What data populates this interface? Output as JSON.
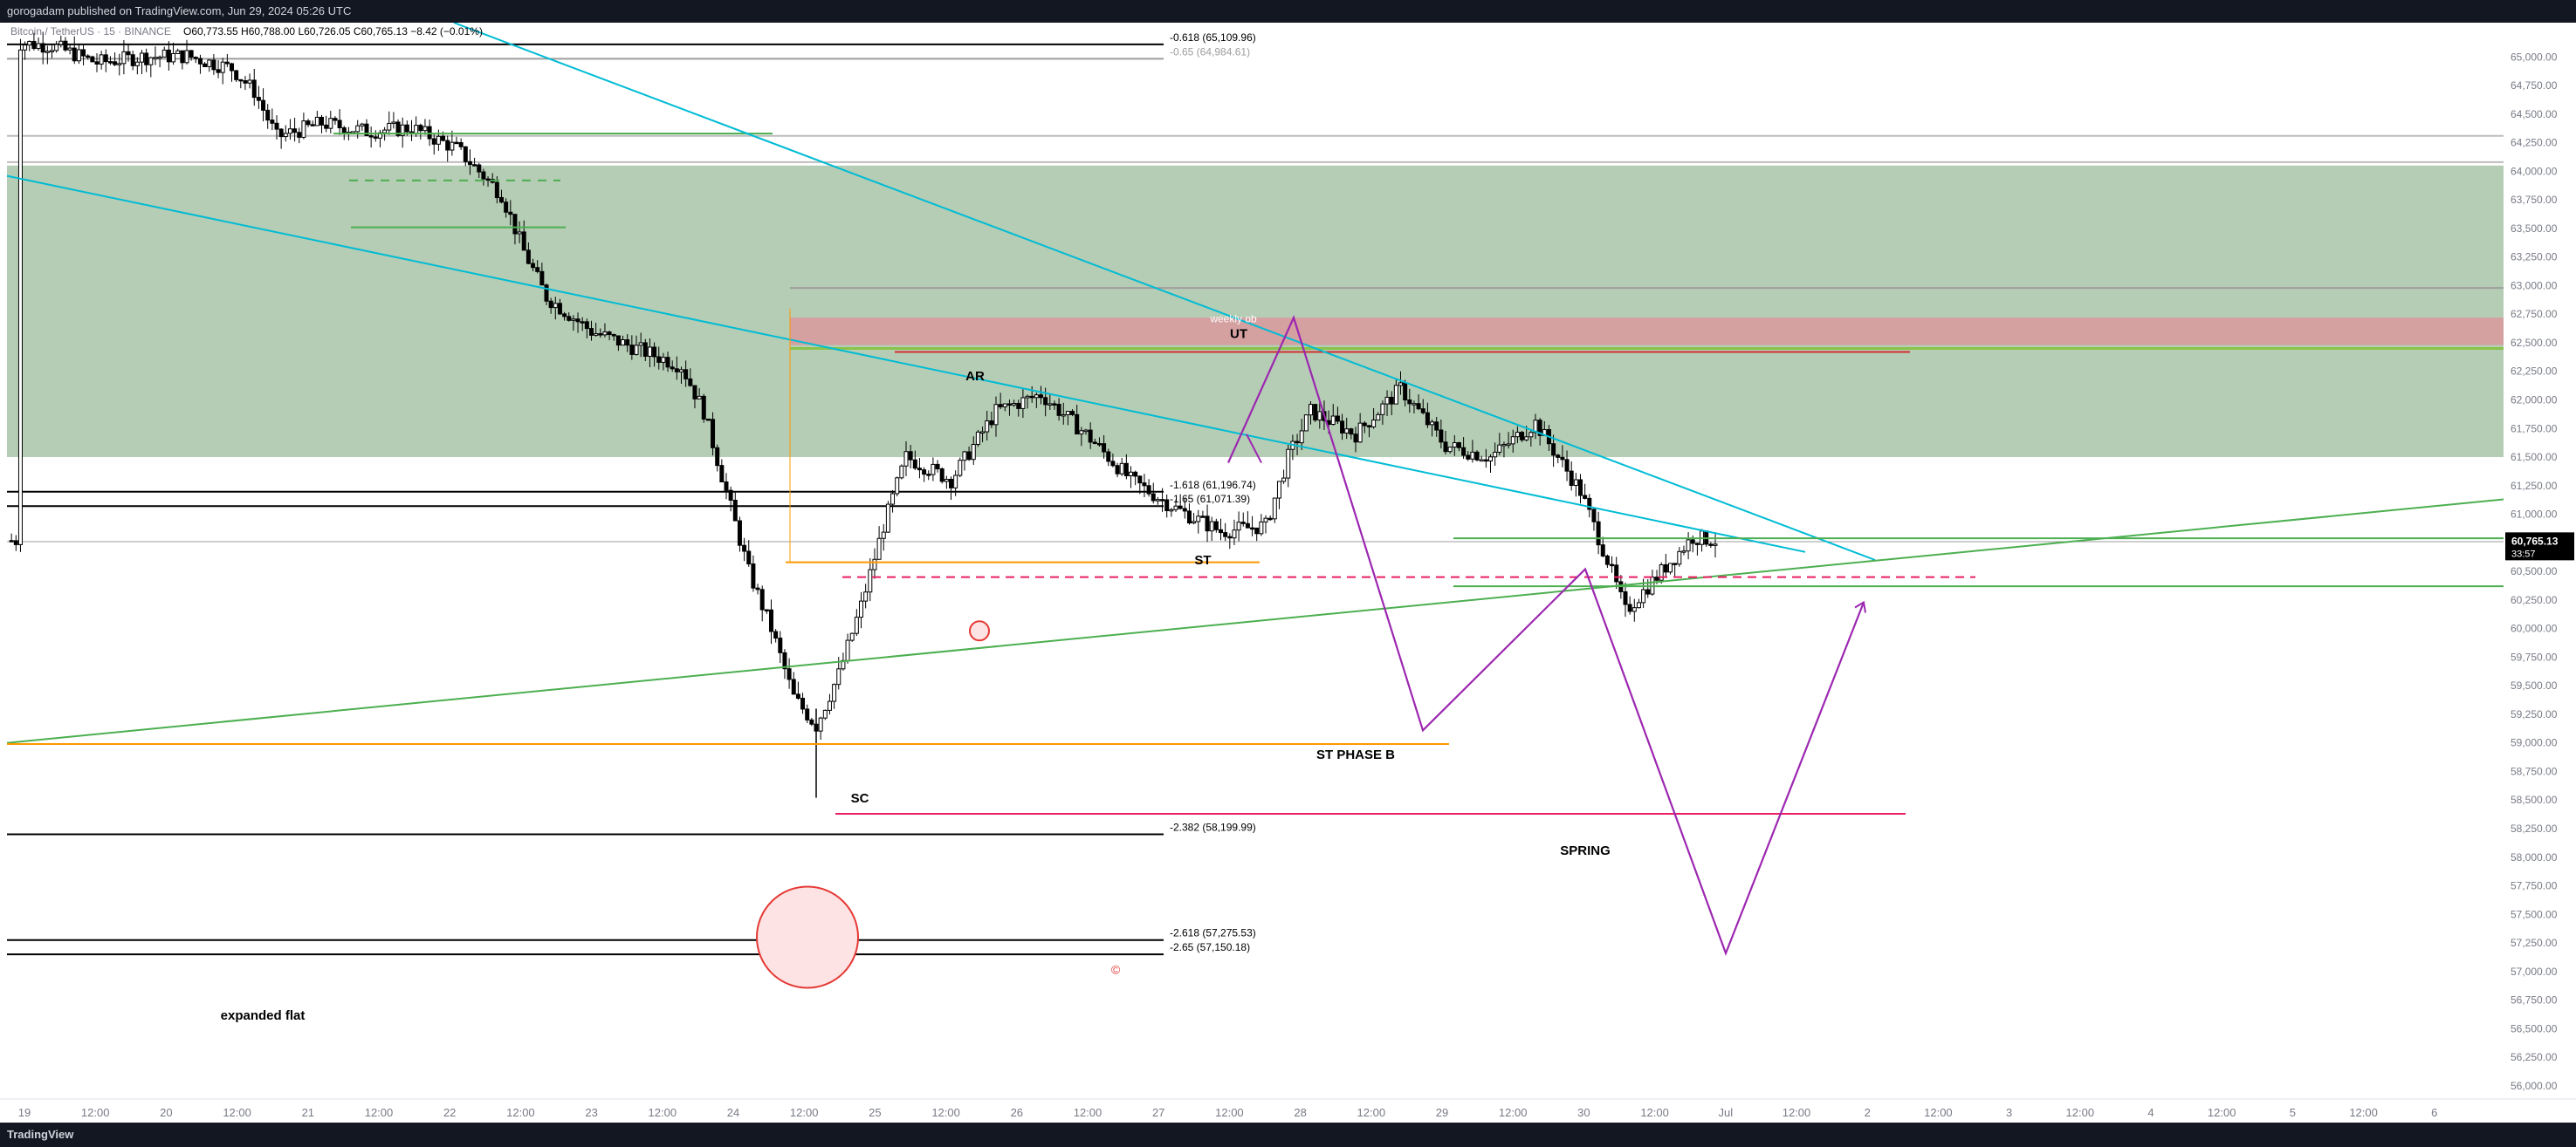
{
  "header": {
    "publish_info": "gorogadam published on TradingView.com, Jun 29, 2024 05:26 UTC"
  },
  "footer": {
    "brand": "TradingView"
  },
  "colors": {
    "background": "#ffffff",
    "up_candle": "#ffffff",
    "down_candle": "#000000",
    "zone_green": "#b5ccb5",
    "zone_red": "#d4a0a0",
    "trendline_cyan": "#00bcd4",
    "trendline_green": "#4caf50",
    "projection_purple": "#9c27b0",
    "orange_level": "#ff9800",
    "pink_level": "#e91e63",
    "price_badge": "#000000"
  },
  "chart_data": {
    "type": "candlestick",
    "symbol_info": "Bitcoin / TetherUS · 15 · BINANCE",
    "ohlc_text": "O60,773.55 H60,788.00 L60,726.05 C60,765.13 −8.42 (−0.01%)",
    "current_price": "60,765.13",
    "countdown": "33:57",
    "y_axis": {
      "min": 55900,
      "max": 65300,
      "ticks": [
        "65,000.00",
        "64,750.00",
        "64,500.00",
        "64,250.00",
        "64,000.00",
        "63,750.00",
        "63,500.00",
        "63,250.00",
        "63,000.00",
        "62,750.00",
        "62,500.00",
        "62,250.00",
        "62,000.00",
        "61,750.00",
        "61,500.00",
        "61,250.00",
        "61,000.00",
        "60,750.00",
        "60,500.00",
        "60,250.00",
        "60,000.00",
        "59,750.00",
        "59,500.00",
        "59,250.00",
        "59,000.00",
        "58,750.00",
        "58,500.00",
        "58,250.00",
        "58,000.00",
        "57,750.00",
        "57,500.00",
        "57,250.00",
        "57,000.00",
        "56,750.00",
        "56,500.00",
        "56,250.00",
        "56,000.00"
      ]
    },
    "x_axis": {
      "ticks": [
        "19",
        "12:00",
        "20",
        "12:00",
        "21",
        "12:00",
        "22",
        "12:00",
        "23",
        "12:00",
        "24",
        "12:00",
        "25",
        "12:00",
        "26",
        "12:00",
        "27",
        "12:00",
        "28",
        "12:00",
        "29",
        "12:00",
        "30",
        "12:00",
        "Jul",
        "12:00",
        "2",
        "12:00",
        "3",
        "12:00",
        "4",
        "12:00",
        "5",
        "12:00",
        "6"
      ]
    },
    "fib_levels": [
      {
        "label": "-0.618 (65,109.96)",
        "price": 65109.96
      },
      {
        "label": "-0.65 (64,984.61)",
        "price": 64984.61
      },
      {
        "label": "-1.618 (61,196.74)",
        "price": 61196.74
      },
      {
        "label": "-1.65 (61,071.39)",
        "price": 61071.39
      },
      {
        "label": "-2.382 (58,199.99)",
        "price": 58199.99
      },
      {
        "label": "-2.618 (57,275.53)",
        "price": 57275.53
      },
      {
        "label": "-2.65 (57,150.18)",
        "price": 57150.18
      }
    ],
    "annotations": {
      "ar": "AR",
      "ut": "UT",
      "weekly_ob": "weekly ob",
      "st_top": "ST",
      "sc": "SC",
      "st_phase_b": "ST PHASE B",
      "spring": "SPRING",
      "expanded_flat": "expanded flat",
      "copyright": "©"
    },
    "zones": [
      {
        "name": "green-demand-zone",
        "from": 61500,
        "to": 64050
      },
      {
        "name": "red-weekly-ob",
        "from": 62480,
        "to": 62720
      }
    ],
    "levels": [
      {
        "name": "orange-st-level",
        "price": 60580
      },
      {
        "name": "orange-sc-level",
        "price": 58990
      },
      {
        "name": "pink-spring-level",
        "price": 58380
      },
      {
        "name": "pink-dashed-level",
        "price": 60450
      },
      {
        "name": "red-ob-level",
        "price": 62420
      },
      {
        "name": "green-current-upper",
        "price": 60780
      },
      {
        "name": "green-current-lower",
        "price": 60360
      }
    ],
    "price_path": [
      [
        3,
        65120
      ],
      [
        10,
        65100
      ],
      [
        20,
        64950
      ],
      [
        30,
        65000
      ],
      [
        40,
        65010
      ],
      [
        50,
        64900
      ],
      [
        55,
        64700
      ],
      [
        60,
        64300
      ],
      [
        70,
        64420
      ],
      [
        80,
        64350
      ],
      [
        90,
        64380
      ],
      [
        100,
        64200
      ],
      [
        105,
        64000
      ],
      [
        110,
        63800
      ],
      [
        115,
        63300
      ],
      [
        120,
        62900
      ],
      [
        130,
        62600
      ],
      [
        140,
        62450
      ],
      [
        150,
        62300
      ],
      [
        155,
        61900
      ],
      [
        160,
        61200
      ],
      [
        165,
        60500
      ],
      [
        170,
        60000
      ],
      [
        175,
        59400
      ],
      [
        180,
        59150
      ],
      [
        185,
        59600
      ],
      [
        190,
        60200
      ],
      [
        195,
        60900
      ],
      [
        200,
        61500
      ],
      [
        210,
        61300
      ],
      [
        220,
        61900
      ],
      [
        230,
        62050
      ],
      [
        240,
        61700
      ],
      [
        250,
        61300
      ],
      [
        260,
        61050
      ],
      [
        270,
        60850
      ],
      [
        280,
        60900
      ],
      [
        285,
        61500
      ],
      [
        290,
        61900
      ],
      [
        300,
        61700
      ],
      [
        310,
        62100
      ],
      [
        320,
        61600
      ],
      [
        330,
        61500
      ],
      [
        340,
        61800
      ],
      [
        350,
        61200
      ],
      [
        356,
        60600
      ],
      [
        360,
        60150
      ],
      [
        368,
        60500
      ],
      [
        375,
        60800
      ],
      [
        380,
        60770
      ]
    ]
  }
}
